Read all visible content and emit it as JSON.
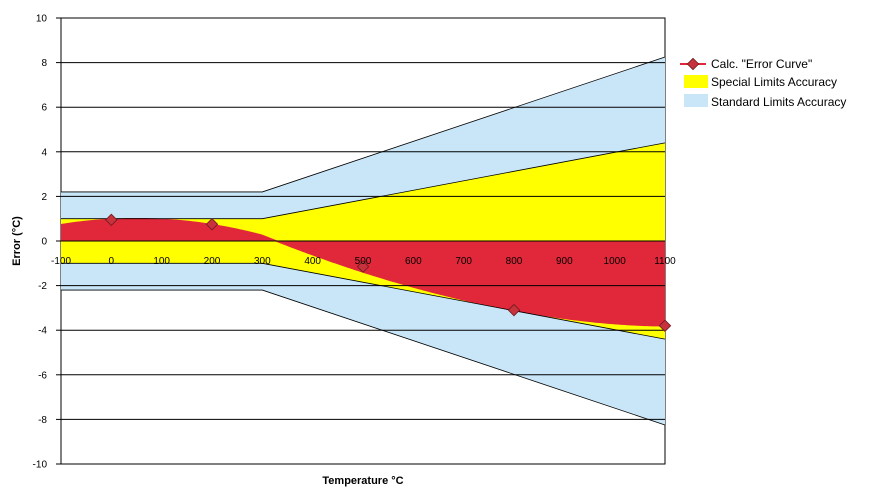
{
  "chart_data": {
    "type": "line",
    "title": "",
    "xlabel": "Temperature °C",
    "ylabel": "Error (°C)",
    "xlim": [
      -100,
      1100
    ],
    "ylim": [
      -10,
      10
    ],
    "x_ticks": [
      -100,
      0,
      100,
      200,
      300,
      400,
      500,
      600,
      700,
      800,
      900,
      1000,
      1100
    ],
    "y_ticks": [
      -10,
      -8,
      -6,
      -4,
      -2,
      0,
      2,
      4,
      6,
      8,
      10
    ],
    "grid": "horizontal",
    "legend_position": "right",
    "series": [
      {
        "name": "Calc. \"Error Curve\"",
        "kind": "line-markers",
        "color": "#e0283a",
        "marker_color": "#c8323c",
        "x": [
          0,
          200,
          500,
          800,
          1100
        ],
        "y": [
          0.95,
          0.75,
          -1.15,
          -3.1,
          -3.8
        ]
      },
      {
        "name": "Special Limits Accuracy",
        "kind": "band",
        "color": "#ffff00",
        "x": [
          -100,
          300,
          1100
        ],
        "upper": [
          1.0,
          1.0,
          4.4
        ],
        "lower": [
          -1.0,
          -1.0,
          -4.4
        ]
      },
      {
        "name": "Standard Limits Accuracy",
        "kind": "band",
        "color": "#c8e6f8",
        "x": [
          -100,
          300,
          1100
        ],
        "upper": [
          2.2,
          2.2,
          8.25
        ],
        "lower": [
          -2.2,
          -2.2,
          -8.25
        ]
      }
    ]
  }
}
